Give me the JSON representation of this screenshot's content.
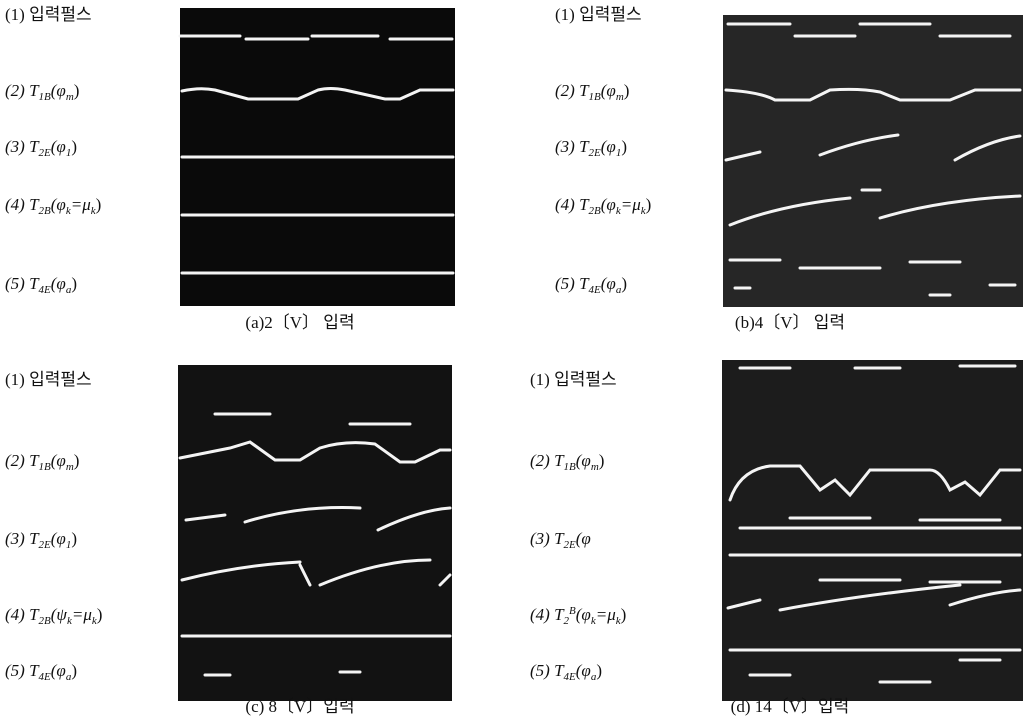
{
  "panels": [
    {
      "labels": [
        {
          "parts": [
            {
              "t": "(1) 입력펄스"
            }
          ]
        },
        {
          "parts": [
            {
              "t": "(2) T"
            },
            {
              "s": "1B"
            },
            {
              "t": "(φ"
            },
            {
              "s": "m"
            },
            {
              "t": ")"
            }
          ]
        },
        {
          "parts": [
            {
              "t": "(3) T"
            },
            {
              "s": "2E"
            },
            {
              "t": "(φ"
            },
            {
              "s": "1"
            },
            {
              "t": ")"
            }
          ]
        },
        {
          "parts": [
            {
              "t": "(4) T"
            },
            {
              "s": "2B"
            },
            {
              "t": "(φ"
            },
            {
              "s": "k"
            },
            {
              "t": "=μ"
            },
            {
              "s": "k"
            },
            {
              "t": ")"
            }
          ]
        },
        {
          "parts": [
            {
              "t": "(5) T"
            },
            {
              "s": "4E"
            },
            {
              "t": "(φ"
            },
            {
              "s": "a"
            },
            {
              "t": ")"
            }
          ]
        }
      ],
      "caption": "(a)2〔V〕 입력"
    },
    {
      "labels": [
        {
          "parts": [
            {
              "t": "(1) 입력펄스"
            }
          ]
        },
        {
          "parts": [
            {
              "t": "(2) T"
            },
            {
              "s": "1B"
            },
            {
              "t": "(φ"
            },
            {
              "s": "m"
            },
            {
              "t": ")"
            }
          ]
        },
        {
          "parts": [
            {
              "t": "(3) T"
            },
            {
              "s": "2E"
            },
            {
              "t": "(φ"
            },
            {
              "s": "1"
            },
            {
              "t": ")"
            }
          ]
        },
        {
          "parts": [
            {
              "t": "(4) T"
            },
            {
              "s": "2B"
            },
            {
              "t": "(φ"
            },
            {
              "s": "k"
            },
            {
              "t": "=μ"
            },
            {
              "s": "k"
            },
            {
              "t": ")"
            }
          ]
        },
        {
          "parts": [
            {
              "t": "(5) T"
            },
            {
              "s": "4E"
            },
            {
              "t": "(φ"
            },
            {
              "s": "a"
            },
            {
              "t": ")"
            }
          ]
        }
      ],
      "caption": "(b)4〔V〕 입력"
    },
    {
      "labels": [
        {
          "parts": [
            {
              "t": "(1) 입력펄스"
            }
          ]
        },
        {
          "parts": [
            {
              "t": "(2) T"
            },
            {
              "s": "1B"
            },
            {
              "t": "(φ"
            },
            {
              "s": "m"
            },
            {
              "t": ")"
            }
          ]
        },
        {
          "parts": [
            {
              "t": "(3) T"
            },
            {
              "s": "2E"
            },
            {
              "t": "(φ"
            },
            {
              "s": "1"
            },
            {
              "t": ")"
            }
          ]
        },
        {
          "parts": [
            {
              "t": "(4) T"
            },
            {
              "s": "2B"
            },
            {
              "t": "(ψ"
            },
            {
              "s": "k"
            },
            {
              "t": "=μ"
            },
            {
              "s": "k"
            },
            {
              "t": ")"
            }
          ]
        },
        {
          "parts": [
            {
              "t": "(5) T"
            },
            {
              "s": "4E"
            },
            {
              "t": "(φ"
            },
            {
              "s": "a"
            },
            {
              "t": ")"
            }
          ]
        }
      ],
      "caption": "(c) 8〔V〕입력"
    },
    {
      "labels": [
        {
          "parts": [
            {
              "t": "(1) 입력펄스"
            }
          ]
        },
        {
          "parts": [
            {
              "t": "(2) T"
            },
            {
              "s": "1B"
            },
            {
              "t": "(φ"
            },
            {
              "s": "m"
            },
            {
              "t": ")"
            }
          ]
        },
        {
          "parts": [
            {
              "t": "(3) T"
            },
            {
              "s": "2E"
            },
            {
              "t": "(φ"
            }
          ]
        },
        {
          "parts": [
            {
              "t": "(4) T"
            },
            {
              "s": "2"
            },
            {
              "p": "B"
            },
            {
              "t": "(φ"
            },
            {
              "s": "k"
            },
            {
              "t": "=μ"
            },
            {
              "s": "k"
            },
            {
              "t": ")"
            }
          ]
        },
        {
          "parts": [
            {
              "t": "(5) T"
            },
            {
              "s": "4E"
            },
            {
              "t": "(φ"
            },
            {
              "s": "a"
            },
            {
              "t": ")"
            }
          ]
        }
      ],
      "caption": "(d) 14〔V〕입력"
    }
  ]
}
